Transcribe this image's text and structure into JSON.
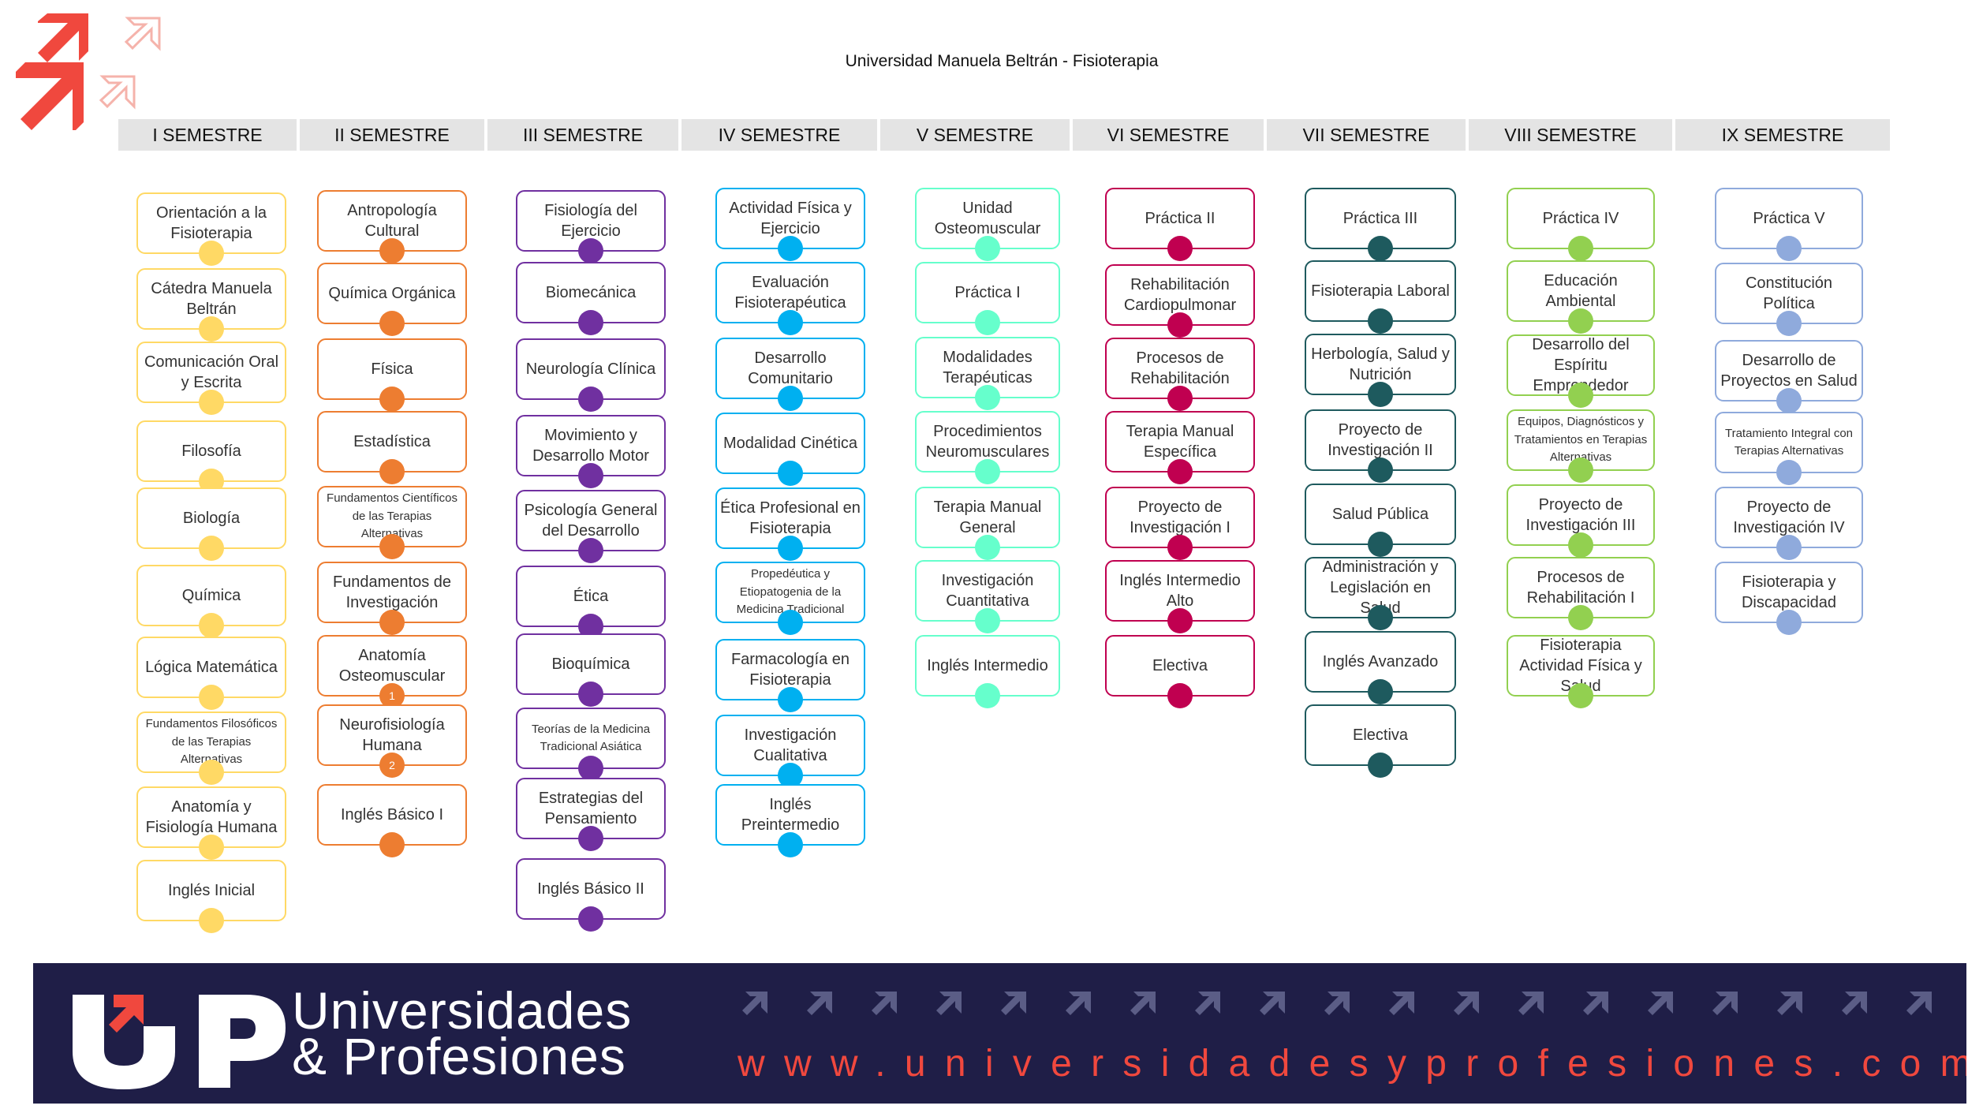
{
  "title": "Universidad Manuela Beltrán - Fisioterapia",
  "semesters": [
    {
      "label": "I SEMESTRE",
      "color": "#ffd965",
      "courses": [
        "Orientación a la Fisioterapia",
        "Cátedra Manuela Beltrán",
        "Comunicación Oral y Escrita",
        "Filosofía",
        "Biología",
        "Química",
        "Lógica Matemática",
        "Fundamentos Filosóficos de las Terapias Alternativas",
        "Anatomía y Fisiología Humana",
        "Inglés Inicial"
      ]
    },
    {
      "label": "II SEMESTRE",
      "color": "#ed7d31",
      "courses": [
        "Antropología Cultural",
        "Química Orgánica",
        "Física",
        "Estadística",
        "Fundamentos Científicos de las Terapias Alternativas",
        "Fundamentos de Investigación",
        "Anatomía Osteomuscular",
        "Neurofisiología Humana",
        "Inglés Básico I"
      ],
      "badges": [
        "",
        "",
        "",
        "",
        "",
        "",
        "1",
        "2",
        ""
      ]
    },
    {
      "label": "III SEMESTRE",
      "color": "#7030a0",
      "courses": [
        "Fisiología del Ejercicio",
        "Biomecánica",
        "Neurología Clínica",
        "Movimiento y Desarrollo Motor",
        "Psicología General del Desarrollo",
        "Ética",
        "Bioquímica",
        "Teorías de la Medicina Tradicional Asiática",
        "Estrategias del Pensamiento",
        "Inglés Básico II"
      ]
    },
    {
      "label": "IV SEMESTRE",
      "color": "#00b0f0",
      "courses": [
        "Actividad Física y Ejercicio",
        "Evaluación Fisioterapéutica",
        "Desarrollo Comunitario",
        "Modalidad Cinética",
        "Ética Profesional en Fisioterapia",
        "Propedéutica y Etiopatogenia de la Medicina Tradicional",
        "Farmacología en Fisioterapia",
        "Investigación Cualitativa",
        "Inglés Preintermedio"
      ]
    },
    {
      "label": "V SEMESTRE",
      "color": "#66ffcc",
      "courses": [
        "Unidad Osteomuscular",
        "Práctica I",
        "Modalidades Terapéuticas",
        "Procedimientos Neuromusculares",
        "Terapia Manual General",
        "Investigación Cuantitativa",
        "Inglés Intermedio"
      ]
    },
    {
      "label": "VI SEMESTRE",
      "color": "#c00050",
      "courses": [
        "Práctica II",
        "Rehabilitación Cardiopulmonar",
        "Procesos de Rehabilitación",
        "Terapia Manual Específica",
        "Proyecto de Investigación I",
        "Inglés Intermedio Alto",
        "Electiva"
      ]
    },
    {
      "label": "VII SEMESTRE",
      "color": "#1e5a5e",
      "courses": [
        "Práctica III",
        "Fisioterapia Laboral",
        "Herbología, Salud y Nutrición",
        "Proyecto de Investigación II",
        "Salud Pública",
        "Administración y Legislación en Salud",
        "Inglés Avanzado",
        "Electiva"
      ]
    },
    {
      "label": "VIII SEMESTRE",
      "color": "#92d050",
      "courses": [
        "Práctica IV",
        "Educación Ambiental",
        "Desarrollo del Espíritu Emprendedor",
        "Equipos, Diagnósticos y Tratamientos en Terapias Alternativas",
        "Proyecto de Investigación III",
        "Procesos de Rehabilitación I",
        "Fisioterapia Actividad Física y Salud"
      ]
    },
    {
      "label": "IX SEMESTRE",
      "color": "#8faadc",
      "courses": [
        "Práctica V",
        "Constitución Política",
        "Desarrollo de Proyectos en Salud",
        "Tratamiento Integral con Terapias Alternativas",
        "Proyecto de Investigación IV",
        "Fisioterapia y Discapacidad"
      ]
    }
  ],
  "footer": {
    "brand_line1": "Universidades",
    "brand_line2": "& Profesiones",
    "url": "www.universidadesyprofesiones.com",
    "accent_color": "#f0483e",
    "background_color": "#1f1e47"
  }
}
